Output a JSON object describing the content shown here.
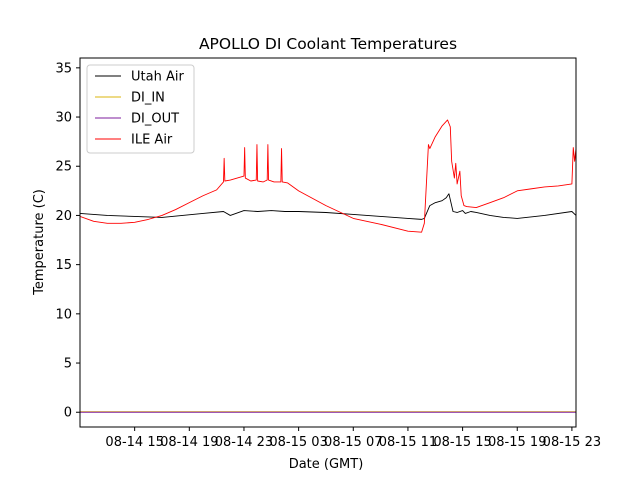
{
  "chart_data": {
    "type": "line",
    "title": "APOLLO DI Coolant Temperatures",
    "xlabel": "Date (GMT)",
    "ylabel": "Temperature (C)",
    "ylim": [
      -1.5,
      36
    ],
    "xlim_hours": [
      0,
      36.3
    ],
    "yticks": [
      0,
      5,
      10,
      15,
      20,
      25,
      30,
      35
    ],
    "xticks": [
      {
        "h": 4,
        "label": "08-14 15"
      },
      {
        "h": 8,
        "label": "08-14 19"
      },
      {
        "h": 12,
        "label": "08-14 23"
      },
      {
        "h": 16,
        "label": "08-15 03"
      },
      {
        "h": 20,
        "label": "08-15 07"
      },
      {
        "h": 24,
        "label": "08-15 11"
      },
      {
        "h": 28,
        "label": "08-15 15"
      },
      {
        "h": 32,
        "label": "08-15 19"
      },
      {
        "h": 36,
        "label": "08-15 23"
      }
    ],
    "legend_position": "top-left",
    "series": [
      {
        "name": "Utah Air",
        "color": "#000000",
        "x": [
          0,
          2,
          4,
          6,
          7.5,
          9,
          10.5,
          11,
          12,
          13,
          14,
          15,
          16,
          18,
          20,
          22,
          24,
          25,
          25.2,
          25.6,
          26,
          26.5,
          26.8,
          27,
          27.3,
          27.6,
          28,
          28.2,
          28.6,
          29,
          30,
          31,
          32,
          34,
          36,
          36.3
        ],
        "y": [
          20.2,
          20.0,
          19.9,
          19.8,
          20.0,
          20.2,
          20.4,
          20.0,
          20.5,
          20.4,
          20.5,
          20.4,
          20.4,
          20.3,
          20.1,
          19.9,
          19.7,
          19.6,
          19.7,
          21.0,
          21.3,
          21.5,
          21.8,
          22.2,
          20.4,
          20.3,
          20.5,
          20.2,
          20.4,
          20.3,
          20.0,
          19.8,
          19.7,
          20.0,
          20.4,
          20.0
        ]
      },
      {
        "name": "DI_IN",
        "color": "#dbb40c",
        "x": [
          0,
          36.3
        ],
        "y": [
          0.05,
          0.05
        ]
      },
      {
        "name": "DI_OUT",
        "color": "#7e1e9c",
        "x": [
          0,
          36.3
        ],
        "y": [
          0,
          0
        ]
      },
      {
        "name": "ILE Air",
        "color": "#ff0000",
        "x": [
          0,
          1,
          2,
          3,
          4,
          5,
          6,
          7,
          8,
          9,
          10,
          10.5,
          10.55,
          10.6,
          11,
          11.5,
          12,
          12.05,
          12.1,
          12.5,
          12.9,
          12.95,
          13.0,
          13.4,
          13.7,
          13.75,
          13.8,
          14.2,
          14.7,
          14.75,
          14.8,
          15.2,
          16,
          18,
          20,
          22,
          24,
          25,
          25.2,
          25.5,
          25.6,
          26,
          26.5,
          26.9,
          27.1,
          27.2,
          27.4,
          27.5,
          27.6,
          27.8,
          27.9,
          28,
          28.1,
          28.3,
          29,
          30,
          31,
          32,
          33,
          34,
          35,
          36,
          36.1,
          36.2,
          36.3
        ],
        "y": [
          19.9,
          19.4,
          19.2,
          19.2,
          19.3,
          19.6,
          20.0,
          20.6,
          21.3,
          22.0,
          22.6,
          23.4,
          25.8,
          23.5,
          23.6,
          23.8,
          24.0,
          26.9,
          23.8,
          23.5,
          23.6,
          27.2,
          23.5,
          23.4,
          23.6,
          27.2,
          23.6,
          23.4,
          23.4,
          26.8,
          23.4,
          23.3,
          22.5,
          21.0,
          19.7,
          19.1,
          18.4,
          18.3,
          19.2,
          27.2,
          26.8,
          28.0,
          29.1,
          29.7,
          29.0,
          25.5,
          23.8,
          25.3,
          23.2,
          24.5,
          22.0,
          21.5,
          21.0,
          20.9,
          20.8,
          21.3,
          21.8,
          22.5,
          22.7,
          22.9,
          23.0,
          23.2,
          26.9,
          25.5,
          26.8
        ]
      }
    ]
  }
}
